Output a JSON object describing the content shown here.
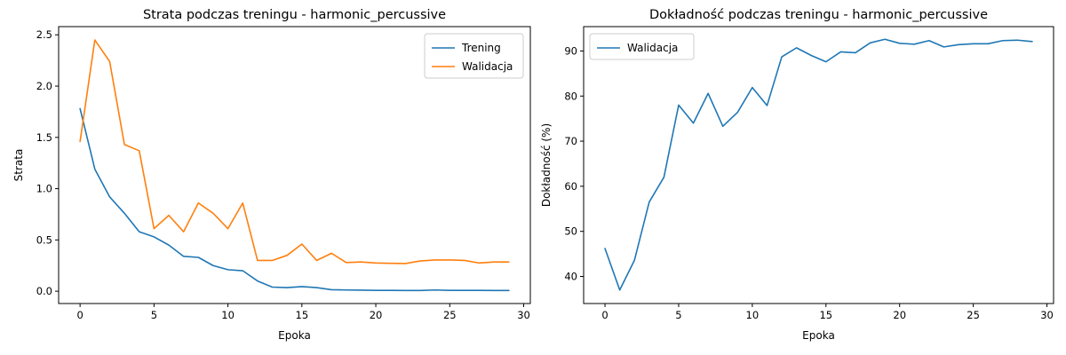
{
  "chart_data": [
    {
      "type": "line",
      "title": "Strata podczas treningu - harmonic_percussive",
      "xlabel": "Epoka",
      "ylabel": "Strata",
      "xlim": [
        -1.45,
        30.45
      ],
      "ylim": [
        -0.12,
        2.58
      ],
      "xticks": [
        0,
        5,
        10,
        15,
        20,
        25,
        30
      ],
      "yticks": [
        0.0,
        0.5,
        1.0,
        1.5,
        2.0,
        2.5
      ],
      "ytick_labels": [
        "0.0",
        "0.5",
        "1.0",
        "1.5",
        "2.0",
        "2.5"
      ],
      "legend": "top-right",
      "grid": false,
      "x": [
        0,
        1,
        2,
        3,
        4,
        5,
        6,
        7,
        8,
        9,
        10,
        11,
        12,
        13,
        14,
        15,
        16,
        17,
        18,
        19,
        20,
        21,
        22,
        23,
        24,
        25,
        26,
        27,
        28,
        29
      ],
      "series": [
        {
          "name": "Trening",
          "color": "#1f77b4",
          "values": [
            1.78,
            1.19,
            0.92,
            0.76,
            0.58,
            0.53,
            0.45,
            0.34,
            0.33,
            0.25,
            0.21,
            0.2,
            0.1,
            0.04,
            0.035,
            0.045,
            0.035,
            0.015,
            0.012,
            0.01,
            0.008,
            0.008,
            0.007,
            0.007,
            0.012,
            0.008,
            0.008,
            0.008,
            0.007,
            0.007
          ]
        },
        {
          "name": "Walidacja",
          "color": "#ff7f0e",
          "values": [
            1.46,
            2.45,
            2.24,
            1.43,
            1.37,
            0.61,
            0.74,
            0.58,
            0.86,
            0.76,
            0.61,
            0.86,
            0.3,
            0.3,
            0.35,
            0.46,
            0.3,
            0.37,
            0.28,
            0.285,
            0.275,
            0.272,
            0.27,
            0.295,
            0.305,
            0.305,
            0.3,
            0.275,
            0.285,
            0.285
          ]
        }
      ]
    },
    {
      "type": "line",
      "title": "Dokładność podczas treningu - harmonic_percussive",
      "xlabel": "Epoka",
      "ylabel": "Dokładność (%)",
      "xlim": [
        -1.45,
        30.45
      ],
      "ylim": [
        34.0,
        95.4
      ],
      "xticks": [
        0,
        5,
        10,
        15,
        20,
        25,
        30
      ],
      "yticks": [
        40,
        50,
        60,
        70,
        80,
        90
      ],
      "ytick_labels": [
        "40",
        "50",
        "60",
        "70",
        "80",
        "90"
      ],
      "legend": "top-left",
      "grid": false,
      "x": [
        0,
        1,
        2,
        3,
        4,
        5,
        6,
        7,
        8,
        9,
        10,
        11,
        12,
        13,
        14,
        15,
        16,
        17,
        18,
        19,
        20,
        21,
        22,
        23,
        24,
        25,
        26,
        27,
        28,
        29
      ],
      "series": [
        {
          "name": "Walidacja",
          "color": "#1f77b4",
          "values": [
            46.2,
            37.0,
            43.6,
            56.5,
            62.0,
            78.0,
            74.0,
            80.6,
            73.3,
            76.4,
            81.9,
            77.9,
            88.7,
            90.7,
            89.0,
            87.6,
            89.8,
            89.6,
            91.8,
            92.6,
            91.7,
            91.5,
            92.3,
            90.9,
            91.4,
            91.6,
            91.6,
            92.3,
            92.4,
            92.1
          ]
        }
      ]
    }
  ]
}
